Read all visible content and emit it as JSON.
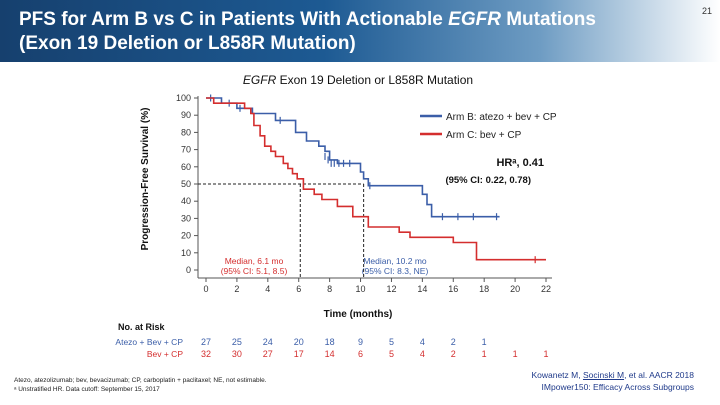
{
  "slide": {
    "title_line1_a": "PFS for Arm B vs C in Patients With Actionable ",
    "title_line1_em": "EGFR",
    "title_line1_b": " Mutations",
    "title_line2": "(Exon 19 Deletion or L858R Mutation)",
    "slide_number": "21",
    "footnote_line1": "Atezo, atezolizumab; bev, bevacizumab; CP, carboplatin + paclitaxel; NE, not estimable.",
    "footnote_line2": "ᵃ Unstratified HR. Data cutoff: September 15, 2017",
    "citation_a": "Kowanetz M, ",
    "citation_u": "Socinski M",
    "citation_b": ", et al. AACR 2018",
    "citation_line2": "IMpower150: Efficacy Across Subgroups"
  },
  "chart_data": {
    "type": "line",
    "subtype": "kaplan-meier",
    "title_em": "EGFR",
    "title_rest": " Exon 19 Deletion or L858R Mutation",
    "xlabel": "Time (months)",
    "ylabel": "Progression-Free Survival (%)",
    "xlim": [
      0,
      22
    ],
    "ylim": [
      0,
      100
    ],
    "x_ticks": [
      0,
      2,
      4,
      6,
      8,
      10,
      12,
      14,
      16,
      18,
      20,
      22
    ],
    "y_ticks": [
      0,
      10,
      20,
      30,
      40,
      50,
      60,
      70,
      80,
      90,
      100
    ],
    "grid": false,
    "legend_position": "top-right",
    "series": [
      {
        "name": "Arm B: atezo + bev + CP",
        "color": "#3b5ea8",
        "points": [
          [
            0,
            100
          ],
          [
            1,
            100
          ],
          [
            1,
            97
          ],
          [
            2,
            97
          ],
          [
            2,
            94
          ],
          [
            3,
            94
          ],
          [
            3,
            91
          ],
          [
            4.5,
            91
          ],
          [
            4.5,
            87
          ],
          [
            5.8,
            87
          ],
          [
            5.8,
            80
          ],
          [
            6.5,
            80
          ],
          [
            6.5,
            75
          ],
          [
            7.3,
            75
          ],
          [
            7.3,
            72
          ],
          [
            7.7,
            72
          ],
          [
            7.7,
            69
          ],
          [
            8.0,
            69
          ],
          [
            8.0,
            64
          ],
          [
            8.5,
            64
          ],
          [
            8.5,
            62
          ],
          [
            10.0,
            62
          ],
          [
            10.0,
            57
          ],
          [
            10.2,
            57
          ],
          [
            10.2,
            53
          ],
          [
            10.5,
            53
          ],
          [
            10.5,
            49
          ],
          [
            14.0,
            49
          ],
          [
            14.0,
            44
          ],
          [
            14.3,
            44
          ],
          [
            14.3,
            38
          ],
          [
            14.6,
            38
          ],
          [
            14.6,
            31
          ],
          [
            19,
            31
          ]
        ],
        "censored": [
          [
            0.3,
            100
          ],
          [
            1.5,
            97
          ],
          [
            2.2,
            94
          ],
          [
            4.8,
            87
          ],
          [
            7.7,
            66
          ],
          [
            7.9,
            64
          ],
          [
            8.1,
            62
          ],
          [
            8.3,
            62
          ],
          [
            8.6,
            62
          ],
          [
            8.9,
            62
          ],
          [
            9.3,
            62
          ],
          [
            10.6,
            49
          ],
          [
            15.3,
            31
          ],
          [
            16.3,
            31
          ],
          [
            17.3,
            31
          ],
          [
            18.8,
            31
          ]
        ]
      },
      {
        "name": "Arm C: bev + CP",
        "color": "#d42e2e",
        "points": [
          [
            0,
            100
          ],
          [
            0.5,
            100
          ],
          [
            0.5,
            97
          ],
          [
            2.5,
            97
          ],
          [
            2.5,
            94
          ],
          [
            2.9,
            94
          ],
          [
            2.9,
            91
          ],
          [
            3.1,
            91
          ],
          [
            3.1,
            84
          ],
          [
            3.5,
            84
          ],
          [
            3.5,
            78
          ],
          [
            3.8,
            78
          ],
          [
            3.8,
            72
          ],
          [
            4.2,
            72
          ],
          [
            4.2,
            69
          ],
          [
            4.5,
            69
          ],
          [
            4.5,
            66
          ],
          [
            5.0,
            66
          ],
          [
            5.0,
            62
          ],
          [
            5.3,
            62
          ],
          [
            5.3,
            59
          ],
          [
            5.6,
            59
          ],
          [
            5.6,
            56
          ],
          [
            5.9,
            56
          ],
          [
            5.9,
            53
          ],
          [
            6.3,
            53
          ],
          [
            6.3,
            47
          ],
          [
            7.0,
            47
          ],
          [
            7.0,
            44
          ],
          [
            7.5,
            44
          ],
          [
            7.5,
            41
          ],
          [
            8.5,
            41
          ],
          [
            8.5,
            37
          ],
          [
            9.5,
            37
          ],
          [
            9.5,
            31
          ],
          [
            10.5,
            31
          ],
          [
            10.5,
            25
          ],
          [
            12.5,
            25
          ],
          [
            12.5,
            22
          ],
          [
            13.2,
            22
          ],
          [
            13.2,
            19
          ],
          [
            16,
            19
          ],
          [
            16,
            16
          ],
          [
            17.5,
            16
          ],
          [
            17.5,
            6
          ],
          [
            22,
            6
          ]
        ],
        "censored": [
          [
            21.3,
            6
          ]
        ]
      }
    ],
    "hr_label": "HRᵃ, 0.41",
    "ci_label": "(95% CI: 0.22, 0.78)",
    "median_lines": [
      {
        "x": 6.1,
        "y": 50
      },
      {
        "x": 10.2,
        "y": 50
      }
    ],
    "annotations": [
      {
        "line1": "Median, 6.1 mo",
        "line2": "(95% CI: 5.1, 8.5)",
        "color": "#d42e2e"
      },
      {
        "line1": "Median, 10.2 mo",
        "line2": "(95% CI: 8.3, NE)",
        "color": "#3b5ea8"
      }
    ],
    "risk_table": {
      "header": "No. at Risk",
      "rows": [
        {
          "label": "Atezo + Bev + CP",
          "color": "#3b5ea8",
          "values": [
            "27",
            "25",
            "24",
            "20",
            "18",
            "9",
            "5",
            "4",
            "2",
            "1",
            "",
            ""
          ]
        },
        {
          "label": "Bev + CP",
          "color": "#d42e2e",
          "values": [
            "32",
            "30",
            "27",
            "17",
            "14",
            "6",
            "5",
            "4",
            "2",
            "1",
            "1",
            "1"
          ]
        }
      ]
    }
  }
}
